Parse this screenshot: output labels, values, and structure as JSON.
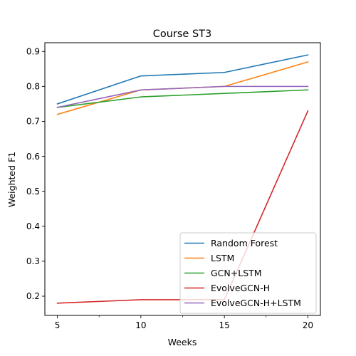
{
  "chart_data": {
    "type": "line",
    "title": "Course ST3",
    "xlabel": "Weeks",
    "ylabel": "Weighted F1",
    "x": [
      5,
      10,
      15,
      20
    ],
    "xticks": [
      5,
      10,
      15,
      20
    ],
    "xlim": [
      4.25,
      20.75
    ],
    "yticks": [
      0.2,
      0.3,
      0.4,
      0.5,
      0.6,
      0.7,
      0.8,
      0.9
    ],
    "ytick_labels": [
      "0.2",
      "0.3",
      "0.4",
      "0.5",
      "0.6",
      "0.7",
      "0.8",
      "0.9"
    ],
    "ylim": [
      0.145,
      0.925
    ],
    "grid": false,
    "legend_position": "lower-right",
    "series": [
      {
        "name": "Random Forest",
        "color": "#1f77b4",
        "values": [
          0.75,
          0.83,
          0.84,
          0.89
        ]
      },
      {
        "name": "LSTM",
        "color": "#ff7f0e",
        "values": [
          0.72,
          0.79,
          0.8,
          0.87
        ]
      },
      {
        "name": "GCN+LSTM",
        "color": "#2ca02c",
        "values": [
          0.74,
          0.77,
          0.78,
          0.79
        ]
      },
      {
        "name": "EvolveGCN-H",
        "color": "#d62728",
        "values": [
          0.18,
          0.19,
          0.19,
          0.73
        ]
      },
      {
        "name": "EvolveGCN-H+LSTM",
        "color": "#9467bd",
        "values": [
          0.74,
          0.79,
          0.8,
          0.8
        ]
      }
    ]
  }
}
